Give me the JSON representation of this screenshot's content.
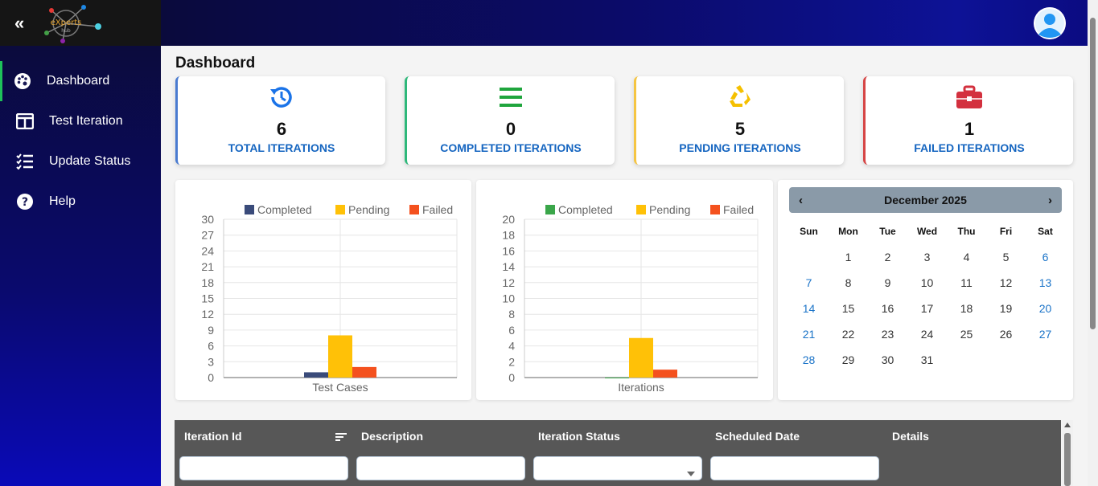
{
  "sidebar": {
    "collapse": "«",
    "logo_text": "eXperts",
    "logo_sub": "hub",
    "items": [
      {
        "label": "Dashboard",
        "icon": "palette-icon"
      },
      {
        "label": "Test Iteration",
        "icon": "columns-icon"
      },
      {
        "label": "Update Status",
        "icon": "checklist-icon"
      },
      {
        "label": "Help",
        "icon": "help-icon"
      }
    ]
  },
  "main": {
    "title": "Dashboard",
    "stats": [
      {
        "value": "6",
        "label": "TOTAL ITERATIONS",
        "color": "#1a73e8",
        "icon": "history-icon"
      },
      {
        "value": "0",
        "label": "COMPLETED ITERATIONS",
        "color": "#1fa53d",
        "icon": "list-icon"
      },
      {
        "value": "5",
        "label": "PENDING ITERATIONS",
        "color": "#f5c000",
        "icon": "recycle-icon"
      },
      {
        "value": "1",
        "label": "FAILED ITERATIONS",
        "color": "#d3303e",
        "icon": "briefcase-icon"
      }
    ]
  },
  "chart_data": [
    {
      "type": "bar",
      "categories": [
        "Test Cases"
      ],
      "series": [
        {
          "name": "Completed",
          "values": [
            1
          ],
          "color": "#3a4b7a"
        },
        {
          "name": "Pending",
          "values": [
            8
          ],
          "color": "#ffc107"
        },
        {
          "name": "Failed",
          "values": [
            2
          ],
          "color": "#f4511e"
        }
      ],
      "xlabel": "Test Cases",
      "ylim": [
        0,
        30
      ],
      "yticks": [
        "0",
        "3",
        "6",
        "9",
        "12",
        "15",
        "18",
        "21",
        "24",
        "27",
        "30"
      ],
      "legend": "top-right"
    },
    {
      "type": "bar",
      "categories": [
        "Iterations"
      ],
      "series": [
        {
          "name": "Completed",
          "values": [
            0
          ],
          "color": "#3aa64a"
        },
        {
          "name": "Pending",
          "values": [
            5
          ],
          "color": "#ffc107"
        },
        {
          "name": "Failed",
          "values": [
            1
          ],
          "color": "#f4511e"
        }
      ],
      "xlabel": "Iterations",
      "ylim": [
        0,
        20
      ],
      "yticks": [
        "0",
        "2",
        "4",
        "6",
        "8",
        "10",
        "12",
        "14",
        "16",
        "18",
        "20"
      ],
      "legend": "top-right"
    }
  ],
  "calendar": {
    "title": "December 2025",
    "prev": "‹",
    "next": "›",
    "dow": [
      "Sun",
      "Mon",
      "Tue",
      "Wed",
      "Thu",
      "Fri",
      "Sat"
    ],
    "weeks": [
      [
        "",
        "1",
        "2",
        "3",
        "4",
        "5",
        "6"
      ],
      [
        "7",
        "8",
        "9",
        "10",
        "11",
        "12",
        "13"
      ],
      [
        "14",
        "15",
        "16",
        "17",
        "18",
        "19",
        "20"
      ],
      [
        "21",
        "22",
        "23",
        "24",
        "25",
        "26",
        "27"
      ],
      [
        "28",
        "29",
        "30",
        "31",
        "",
        "",
        ""
      ]
    ]
  },
  "table": {
    "headers": [
      "Iteration Id",
      "Description",
      "Iteration Status",
      "Scheduled Date",
      "Details"
    ]
  }
}
